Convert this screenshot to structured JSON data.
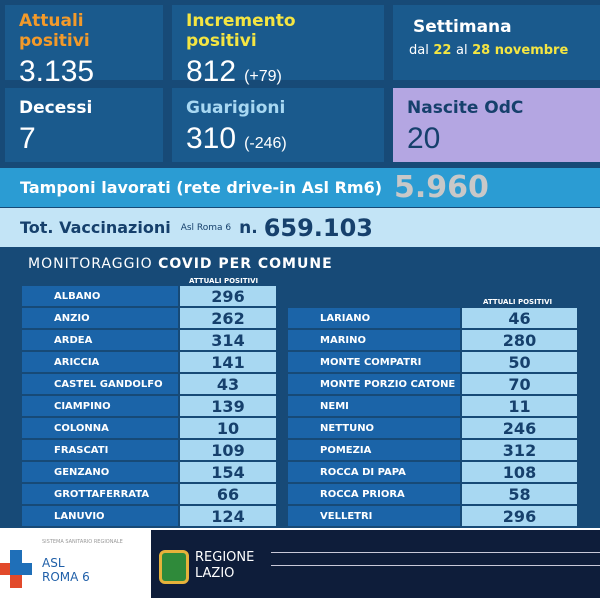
{
  "attuali": {
    "label": "Attuali positivi",
    "value": "3.135",
    "color": "#f39a2a"
  },
  "incremento": {
    "label": "Incremento positivi",
    "value": "812",
    "delta": "(+79)",
    "color": "#f4e542"
  },
  "settimana": {
    "label": "Settimana",
    "prefix": "dal",
    "from": "22",
    "mid": "al",
    "to": "28 novembre"
  },
  "decessi": {
    "label": "Decessi",
    "value": "7"
  },
  "guarigioni": {
    "label": "Guarigioni",
    "value": "310",
    "delta": "(-246)"
  },
  "nascite": {
    "label": "Nascite OdC",
    "value": "20"
  },
  "tamponi": {
    "label": "Tamponi lavorati (rete drive-in Asl Rm6)",
    "value": "5.960"
  },
  "vaccinazioni": {
    "label": "Tot. Vaccinazioni",
    "sub": "Asl Roma 6",
    "prefix": "n.",
    "value": "659.103"
  },
  "monitoraggio": {
    "title_a": "MONITORAGGIO",
    "title_b": "COVID PER COMUNE",
    "col_header": "ATTUALI  POSITIVI"
  },
  "left": [
    [
      "ALBANO",
      "296"
    ],
    [
      "ANZIO",
      "262"
    ],
    [
      "ARDEA",
      "314"
    ],
    [
      "ARICCIA",
      "141"
    ],
    [
      "CASTEL GANDOLFO",
      "43"
    ],
    [
      "CIAMPINO",
      "139"
    ],
    [
      "COLONNA",
      "10"
    ],
    [
      "FRASCATI",
      "109"
    ],
    [
      "GENZANO",
      "154"
    ],
    [
      "GROTTAFERRATA",
      "66"
    ],
    [
      "LANUVIO",
      "124"
    ]
  ],
  "right": [
    [
      "LARIANO",
      "46"
    ],
    [
      "MARINO",
      "280"
    ],
    [
      "MONTE COMPATRI",
      "50"
    ],
    [
      "MONTE PORZIO CATONE",
      "70"
    ],
    [
      "NEMI",
      "11"
    ],
    [
      "NETTUNO",
      "246"
    ],
    [
      "POMEZIA",
      "312"
    ],
    [
      "ROCCA DI PAPA",
      "108"
    ],
    [
      "ROCCA PRIORA",
      "58"
    ],
    [
      "VELLETRI",
      "296"
    ]
  ],
  "footer": {
    "ssr": "SISTEMA SANITARIO REGIONALE",
    "asl1": "ASL",
    "asl2": "ROMA 6",
    "regione1": "REGIONE",
    "regione2": "LAZIO"
  }
}
